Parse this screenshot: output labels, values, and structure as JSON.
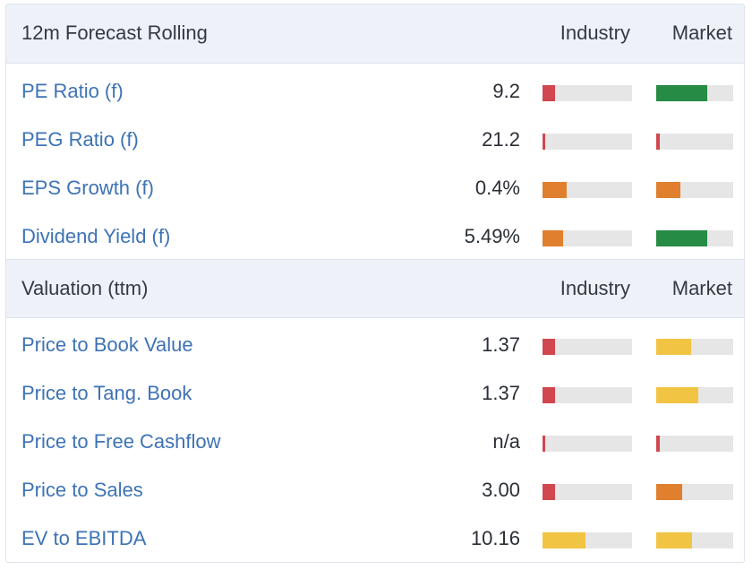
{
  "colors": {
    "red": "#d0474f",
    "green": "#258b45",
    "orange": "#e07f2e",
    "yellow": "#f2c443",
    "link": "#3d73b5"
  },
  "forecast": {
    "title": "12m Forecast Rolling",
    "col_industry": "Industry",
    "col_market": "Market",
    "rows": [
      {
        "label": "PE Ratio (f)",
        "value": "9.2",
        "industry": {
          "fill": 0.14,
          "color": "red"
        },
        "market": {
          "fill": 0.66,
          "color": "green"
        }
      },
      {
        "label": "PEG Ratio (f)",
        "value": "21.2",
        "industry": {
          "fill": 0.03,
          "color": "red"
        },
        "market": {
          "fill": 0.05,
          "color": "red"
        }
      },
      {
        "label": "EPS Growth (f)",
        "value": "0.4%",
        "industry": {
          "fill": 0.27,
          "color": "orange"
        },
        "market": {
          "fill": 0.31,
          "color": "orange"
        }
      },
      {
        "label": "Dividend Yield (f)",
        "value": "5.49%",
        "industry": {
          "fill": 0.23,
          "color": "orange"
        },
        "market": {
          "fill": 0.66,
          "color": "green"
        }
      }
    ]
  },
  "valuation": {
    "title": "Valuation (ttm)",
    "col_industry": "Industry",
    "col_market": "Market",
    "rows": [
      {
        "label": "Price to Book Value",
        "value": "1.37",
        "industry": {
          "fill": 0.14,
          "color": "red"
        },
        "market": {
          "fill": 0.45,
          "color": "yellow"
        }
      },
      {
        "label": "Price to Tang. Book",
        "value": "1.37",
        "industry": {
          "fill": 0.14,
          "color": "red"
        },
        "market": {
          "fill": 0.55,
          "color": "yellow"
        }
      },
      {
        "label": "Price to Free Cashflow",
        "value": "n/a",
        "industry": {
          "fill": 0.03,
          "color": "red"
        },
        "market": {
          "fill": 0.05,
          "color": "red"
        }
      },
      {
        "label": "Price to Sales",
        "value": "3.00",
        "industry": {
          "fill": 0.14,
          "color": "red"
        },
        "market": {
          "fill": 0.34,
          "color": "orange"
        }
      },
      {
        "label": "EV to EBITDA",
        "value": "10.16",
        "industry": {
          "fill": 0.48,
          "color": "yellow"
        },
        "market": {
          "fill": 0.47,
          "color": "yellow"
        }
      }
    ]
  }
}
